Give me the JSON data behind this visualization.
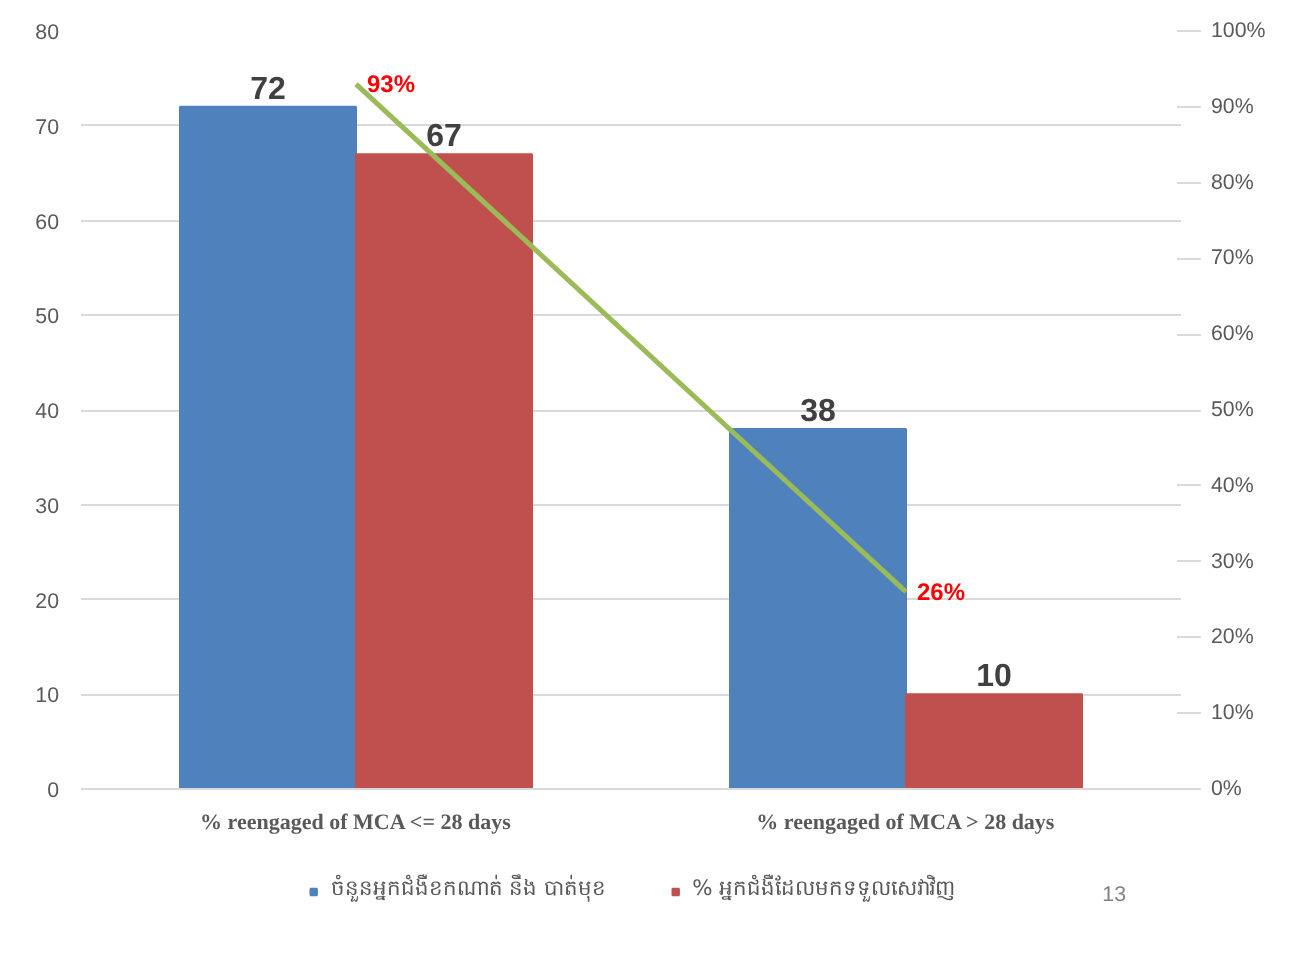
{
  "chart_data": {
    "type": "bar",
    "categories": [
      "% reengaged of MCA <= 28 days",
      "% reengaged of MCA > 28 days"
    ],
    "series": [
      {
        "name": "ចំនួនអ្នកជំងឺខកណាត់ នឹង បាត់មុខ",
        "color": "#4f81bd",
        "values": [
          72,
          38
        ]
      },
      {
        "name": "% អ្នកជំងឺដែលមកទទួលសេវាវិញ",
        "color": "#c0504d",
        "values": [
          67,
          10
        ]
      },
      {
        "type": "line",
        "axis": "y2",
        "color": "#9bbb59",
        "values": [
          93,
          26
        ],
        "value_labels": [
          "93%",
          "26%"
        ]
      }
    ],
    "data_labels": true,
    "ylim": [
      0,
      80
    ],
    "yticks": [
      0,
      10,
      20,
      30,
      40,
      50,
      60,
      70,
      80
    ],
    "y2lim": [
      0,
      100
    ],
    "y2ticks": [
      {
        "value": 0,
        "label": "0%"
      },
      {
        "value": 10,
        "label": "10%"
      },
      {
        "value": 20,
        "label": "20%"
      },
      {
        "value": 30,
        "label": "30%"
      },
      {
        "value": 40,
        "label": "40%"
      },
      {
        "value": 50,
        "label": "50%"
      },
      {
        "value": 60,
        "label": "60%"
      },
      {
        "value": 70,
        "label": "70%"
      },
      {
        "value": 80,
        "label": "80%"
      },
      {
        "value": 90,
        "label": "90%"
      },
      {
        "value": 100,
        "label": "100%"
      }
    ],
    "grid": "y",
    "legend": "bottom",
    "marker": "none",
    "annotations": [
      "13"
    ]
  }
}
